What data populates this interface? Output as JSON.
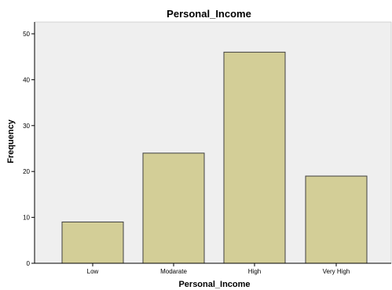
{
  "chart_data": {
    "type": "bar",
    "title": "Personal_Income",
    "xlabel": "Personal_Income",
    "ylabel": "Frequency",
    "categories": [
      "Low",
      "Modarate",
      "High",
      "Very High"
    ],
    "values": [
      9,
      24,
      46,
      19
    ],
    "ylim": [
      0,
      50
    ],
    "yticks": [
      0,
      10,
      20,
      30,
      40,
      50
    ],
    "grid": false,
    "legend": "none",
    "colors": {
      "plot_background": "#efefef",
      "bar_fill": "#d3ce97",
      "bar_stroke": "#404040",
      "axis": "#000000"
    }
  }
}
